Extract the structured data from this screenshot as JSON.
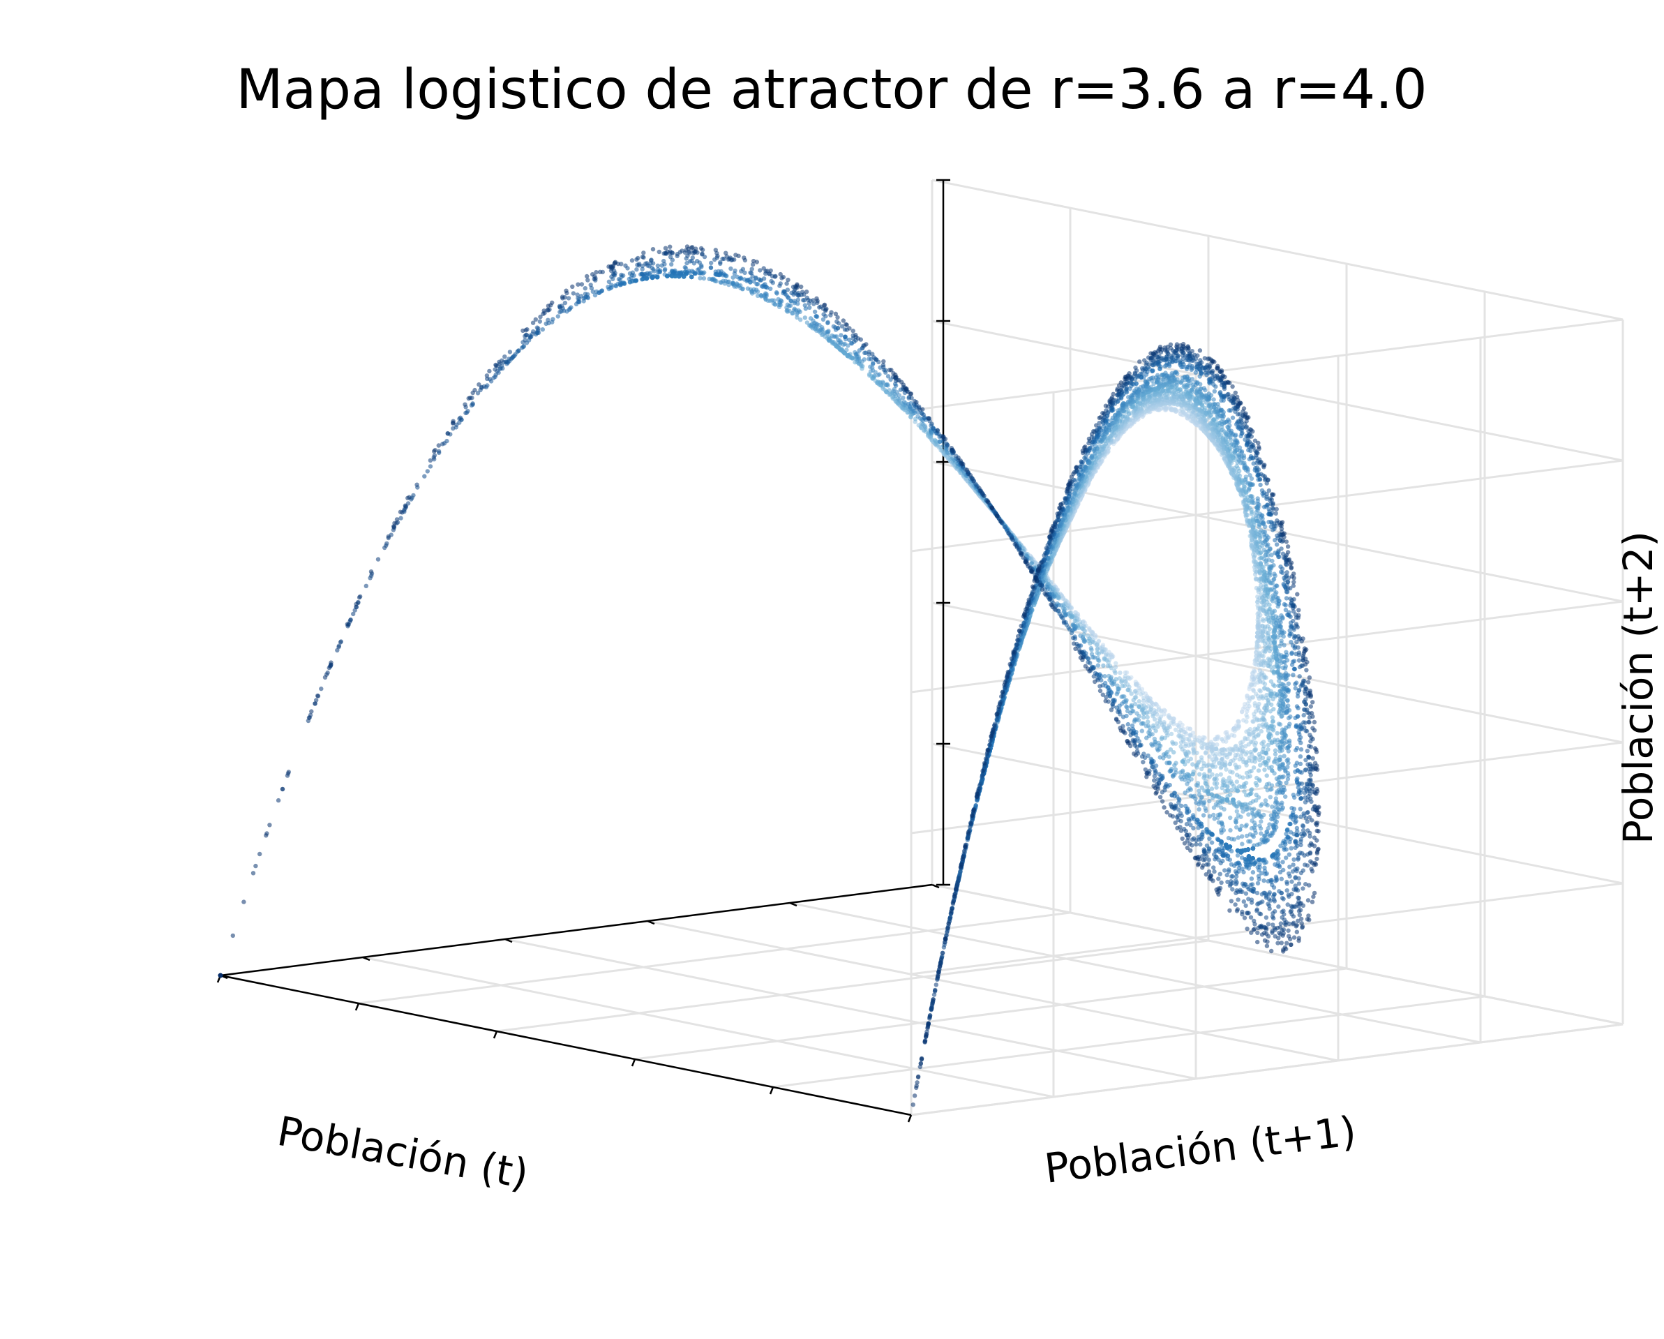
{
  "chart_data": {
    "type": "scatter",
    "projection": "3d",
    "title": "Mapa logistico de atractor de r=3.6 a r=4.0",
    "xlabel": "Población (t)",
    "ylabel": "Población (t+1)",
    "zlabel": "Población (t+2)",
    "xlim": [
      0,
      1
    ],
    "ylim": [
      0,
      1
    ],
    "zlim": [
      0,
      1
    ],
    "grid": true,
    "colormap": "Blues",
    "r_range": [
      3.6,
      4.0
    ],
    "series": [
      {
        "description": "logistic map trajectory points (x_t, x_t+1, x_t+2), colored by r",
        "r_from": 3.6,
        "r_to": 4.0,
        "map": "x_next = r * x * (1 - x)"
      }
    ]
  }
}
